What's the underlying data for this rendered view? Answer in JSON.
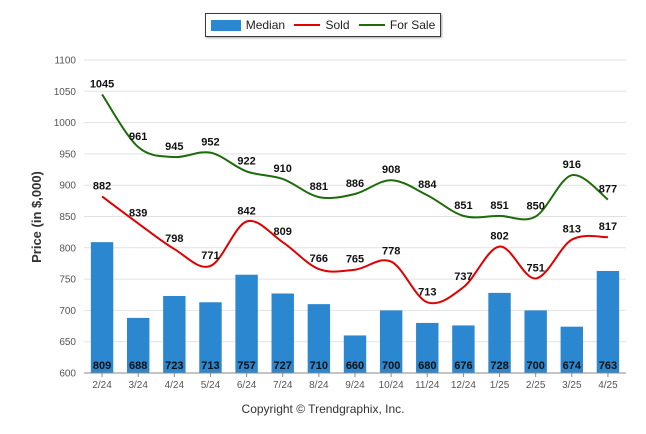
{
  "legend": {
    "median": "Median",
    "sold": "Sold",
    "for_sale": "For Sale"
  },
  "colors": {
    "median": "#2A87D0",
    "sold": "#E00000",
    "for_sale": "#1E6B0B"
  },
  "copyright": "Copyright © Trendgraphix, Inc.",
  "chart_data": {
    "type": "bar",
    "title": "",
    "xlabel": "",
    "ylabel": "Price (in $,000)",
    "ylim": [
      600,
      1100
    ],
    "yticks": [
      600,
      650,
      700,
      750,
      800,
      850,
      900,
      950,
      1000,
      1050,
      1100
    ],
    "grid": true,
    "legend_position": "top-center",
    "categories": [
      "2/24",
      "3/24",
      "4/24",
      "5/24",
      "6/24",
      "7/24",
      "8/24",
      "9/24",
      "10/24",
      "11/24",
      "12/24",
      "1/25",
      "2/25",
      "3/25",
      "4/25"
    ],
    "series": [
      {
        "name": "Median",
        "type": "bar",
        "values": [
          809,
          688,
          723,
          713,
          757,
          727,
          710,
          660,
          700,
          680,
          676,
          728,
          700,
          674,
          763
        ]
      },
      {
        "name": "Sold",
        "type": "line",
        "values": [
          882,
          839,
          798,
          771,
          842,
          809,
          766,
          765,
          778,
          713,
          737,
          802,
          751,
          813,
          817
        ]
      },
      {
        "name": "For Sale",
        "type": "line",
        "values": [
          1045,
          961,
          945,
          952,
          922,
          910,
          881,
          886,
          908,
          884,
          851,
          851,
          850,
          916,
          877
        ]
      }
    ]
  }
}
